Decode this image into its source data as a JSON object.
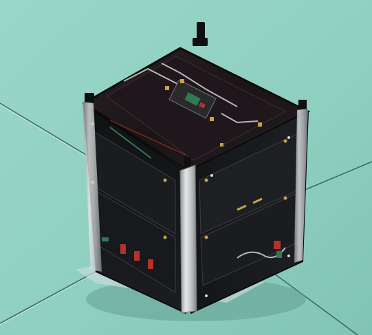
{
  "photo": {
    "subject": "cubesat",
    "background_color": "#8ed0c2",
    "panel_color": "#141316",
    "frame_color": "#c9cccd",
    "ribbon_color": "#b8b8b8",
    "accent_gold": "#c9a24a",
    "accent_red": "#b4322a",
    "accent_green": "#2f7a55"
  }
}
